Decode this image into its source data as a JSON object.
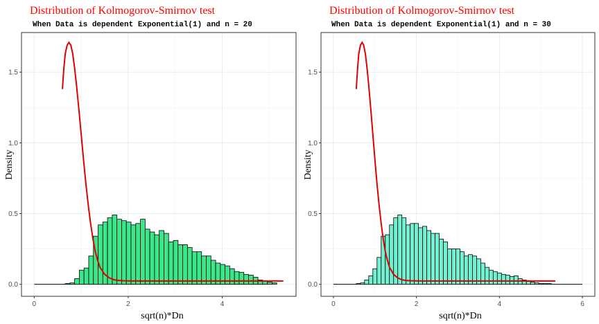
{
  "chart_data": [
    {
      "type": "bar",
      "title": "Distribution of Kolmogorov-Smirnov test",
      "subtitle": "When Data is dependent Exponential(1) and n = 20",
      "xlabel": "sqrt(n)*Dn",
      "ylabel": "Density",
      "xlim": [
        -0.27,
        5.57
      ],
      "ylim": [
        -0.085,
        1.78
      ],
      "x_ticks": [
        0,
        2,
        4
      ],
      "x_tick_labels": [
        "0",
        "2",
        "4"
      ],
      "y_ticks": [
        0.0,
        0.5,
        1.0,
        1.5
      ],
      "y_tick_labels": [
        "0.0",
        "0.5",
        "1.0",
        "1.5"
      ],
      "grid": true,
      "legend": "none",
      "fill_color": "#3ee68a",
      "line_color": "#e00000",
      "histogram": {
        "bin_start": 0.66,
        "bin_width": 0.1,
        "densities": [
          0.005,
          0.01,
          0.04,
          0.1,
          0.115,
          0.2,
          0.34,
          0.42,
          0.44,
          0.47,
          0.49,
          0.46,
          0.45,
          0.44,
          0.42,
          0.43,
          0.46,
          0.39,
          0.37,
          0.35,
          0.38,
          0.36,
          0.3,
          0.31,
          0.28,
          0.28,
          0.26,
          0.23,
          0.23,
          0.2,
          0.2,
          0.17,
          0.15,
          0.14,
          0.13,
          0.11,
          0.09,
          0.085,
          0.07,
          0.065,
          0.05,
          0.03,
          0.025,
          0.015,
          0.01
        ]
      },
      "density_curve": {
        "x": [
          0.6,
          0.63,
          0.66,
          0.7,
          0.74,
          0.78,
          0.82,
          0.86,
          0.9,
          0.95,
          1.0,
          1.05,
          1.1,
          1.15,
          1.2,
          1.25,
          1.3,
          1.35,
          1.4,
          1.5,
          1.6,
          1.7,
          1.8,
          1.9,
          2.0,
          2.2,
          2.6,
          3.0,
          4.0,
          5.0,
          5.3
        ],
        "y": [
          1.38,
          1.52,
          1.63,
          1.69,
          1.71,
          1.69,
          1.63,
          1.53,
          1.41,
          1.24,
          1.06,
          0.88,
          0.71,
          0.56,
          0.43,
          0.32,
          0.23,
          0.17,
          0.12,
          0.07,
          0.045,
          0.032,
          0.027,
          0.025,
          0.024,
          0.023,
          0.023,
          0.023,
          0.023,
          0.023,
          0.023
        ]
      },
      "baseline_x": [
        0,
        5.0
      ]
    },
    {
      "type": "bar",
      "title": "Distribution of Kolmogorov-Smirnov test",
      "subtitle": "When Data is dependent Exponential(1) and n = 30",
      "xlabel": "sqrt(n)*Dn",
      "ylabel": "Density",
      "xlim": [
        -0.3,
        6.3
      ],
      "ylim": [
        -0.085,
        1.78
      ],
      "x_ticks": [
        0,
        2,
        4,
        6
      ],
      "x_tick_labels": [
        "0",
        "2",
        "4",
        "6"
      ],
      "y_ticks": [
        0.0,
        0.5,
        1.0,
        1.5
      ],
      "y_tick_labels": [
        "0.0",
        "0.5",
        "1.0",
        "1.5"
      ],
      "grid": true,
      "legend": "none",
      "fill_color": "#70f2d2",
      "line_color": "#e00000",
      "histogram": {
        "bin_start": 0.55,
        "bin_width": 0.1,
        "densities": [
          0.005,
          0.01,
          0.03,
          0.06,
          0.11,
          0.19,
          0.34,
          0.35,
          0.42,
          0.47,
          0.49,
          0.47,
          0.42,
          0.43,
          0.43,
          0.4,
          0.41,
          0.38,
          0.36,
          0.36,
          0.32,
          0.3,
          0.25,
          0.25,
          0.25,
          0.23,
          0.2,
          0.21,
          0.2,
          0.18,
          0.15,
          0.12,
          0.1,
          0.09,
          0.08,
          0.07,
          0.065,
          0.055,
          0.06,
          0.04,
          0.03,
          0.02,
          0.015,
          0.01,
          0.005,
          0.005,
          0.005
        ]
      },
      "density_curve": {
        "x": [
          0.55,
          0.58,
          0.61,
          0.65,
          0.69,
          0.73,
          0.77,
          0.81,
          0.85,
          0.9,
          0.95,
          1.0,
          1.05,
          1.1,
          1.15,
          1.2,
          1.25,
          1.3,
          1.35,
          1.45,
          1.55,
          1.65,
          1.75,
          1.85,
          2.0,
          2.2,
          2.6,
          3.0,
          4.0,
          5.0,
          5.35
        ],
        "y": [
          1.38,
          1.52,
          1.63,
          1.69,
          1.71,
          1.69,
          1.63,
          1.53,
          1.41,
          1.24,
          1.06,
          0.88,
          0.71,
          0.56,
          0.43,
          0.32,
          0.23,
          0.17,
          0.12,
          0.07,
          0.045,
          0.032,
          0.027,
          0.025,
          0.024,
          0.023,
          0.023,
          0.023,
          0.023,
          0.023,
          0.023
        ]
      },
      "baseline_x": [
        0,
        6.0
      ]
    }
  ]
}
